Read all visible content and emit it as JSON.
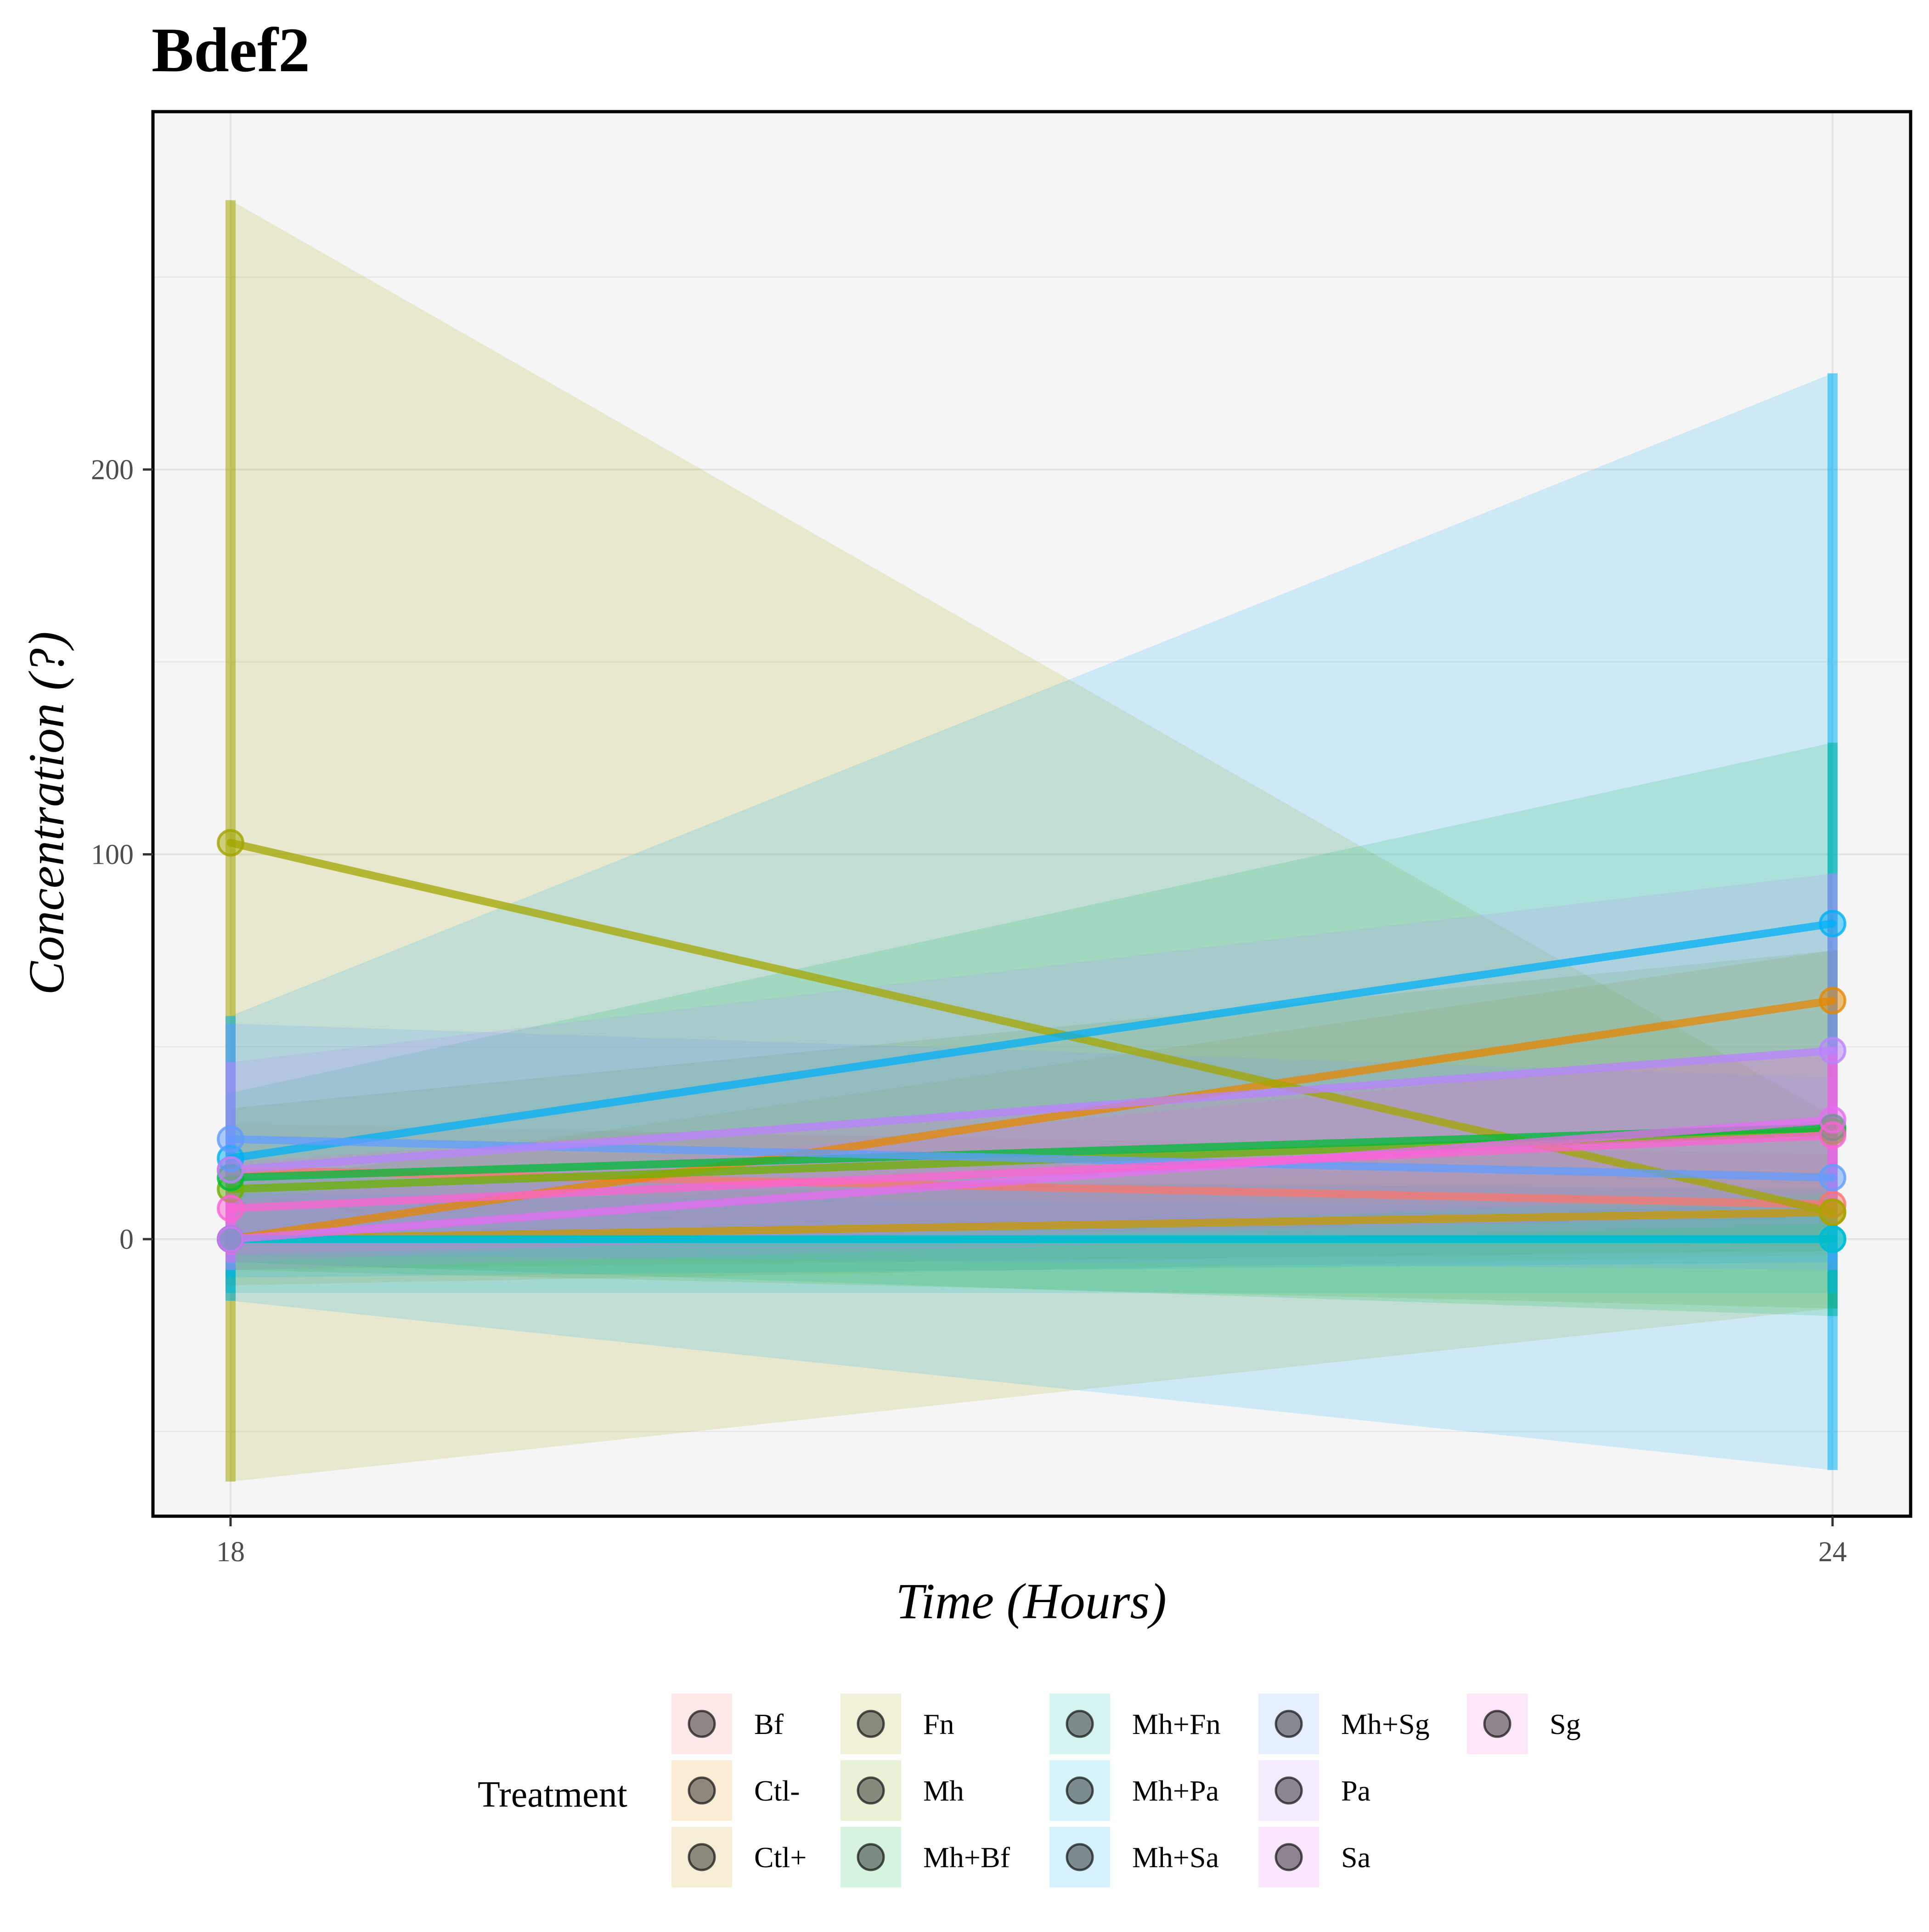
{
  "chart_data": {
    "type": "line",
    "title": "Bdef2",
    "xlabel": "Time (Hours)",
    "ylabel": "Concentration (?)",
    "x": [
      18,
      24
    ],
    "x_ticks": [
      "18",
      "24"
    ],
    "y_ticks": [
      "0",
      "100",
      "200"
    ],
    "ylim": [
      -72,
      293
    ],
    "grid": true,
    "legend": {
      "title": "Treatment",
      "position": "bottom"
    },
    "series": [
      {
        "name": "Bf",
        "color": "#F8766D",
        "values": [
          18,
          9
        ],
        "lower": [
          8,
          -2
        ],
        "upper": [
          30,
          22
        ]
      },
      {
        "name": "Ctl-",
        "color": "#E58700",
        "values": [
          0,
          62
        ],
        "lower": [
          -12,
          -4
        ],
        "upper": [
          14,
          75
        ]
      },
      {
        "name": "Ctl+",
        "color": "#C99800",
        "values": [
          0,
          7
        ],
        "lower": [
          -8,
          -3
        ],
        "upper": [
          10,
          18
        ]
      },
      {
        "name": "Fn",
        "color": "#A3A500",
        "values": [
          103,
          7
        ],
        "lower": [
          -63,
          -18
        ],
        "upper": [
          270,
          32
        ]
      },
      {
        "name": "Mh",
        "color": "#6BB100",
        "values": [
          13,
          28
        ],
        "lower": [
          -8,
          -18
        ],
        "upper": [
          34,
          75
        ]
      },
      {
        "name": "Mh+Bf",
        "color": "#00BA38",
        "values": [
          16,
          29
        ],
        "lower": [
          -6,
          -20
        ],
        "upper": [
          38,
          129
        ]
      },
      {
        "name": "Mh+Fn",
        "color": "#00C0AF",
        "values": [
          0,
          0
        ],
        "lower": [
          -14,
          -14
        ],
        "upper": [
          16,
          13
        ]
      },
      {
        "name": "Mh+Pa",
        "color": "#00BCD8",
        "values": [
          0,
          0
        ],
        "lower": [
          -10,
          -6
        ],
        "upper": [
          12,
          8
        ]
      },
      {
        "name": "Mh+Sa",
        "color": "#00B0F6",
        "values": [
          21,
          82
        ],
        "lower": [
          -16,
          -60
        ],
        "upper": [
          58,
          225
        ]
      },
      {
        "name": "Mh+Sg",
        "color": "#619CFF",
        "values": [
          26,
          16
        ],
        "lower": [
          -4,
          -8
        ],
        "upper": [
          56,
          42
        ]
      },
      {
        "name": "Pa",
        "color": "#B983FF",
        "values": [
          18,
          49
        ],
        "lower": [
          -8,
          4
        ],
        "upper": [
          46,
          95
        ]
      },
      {
        "name": "Sa",
        "color": "#E76BF3",
        "values": [
          0,
          31
        ],
        "lower": [
          -6,
          12
        ],
        "upper": [
          10,
          50
        ]
      },
      {
        "name": "Sg",
        "color": "#FD61D1",
        "values": [
          8,
          27
        ],
        "lower": [
          -4,
          6
        ],
        "upper": [
          20,
          48
        ]
      }
    ]
  }
}
